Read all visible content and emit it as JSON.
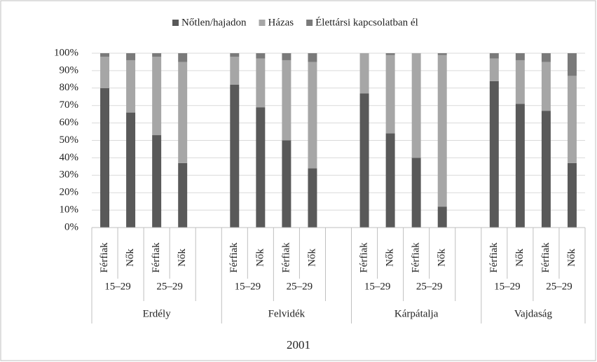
{
  "chart_data": {
    "type": "stacked_bar",
    "title": "2001",
    "categories": [
      "Férfiak",
      "Nők",
      "Férfiak",
      "Nők",
      null,
      "Férfiak",
      "Nők",
      "Férfiak",
      "Nők",
      null,
      "Férfiak",
      "Nők",
      "Férfiak",
      "Nők",
      null,
      "Férfiak",
      "Nők",
      "Férfiak",
      "Nők"
    ],
    "groups": [
      {
        "name": "Erdély",
        "subgroups": [
          "15–29",
          "25–29"
        ]
      },
      {
        "name": "Felvidék",
        "subgroups": [
          "15–29",
          "25–29"
        ]
      },
      {
        "name": "Kárpátalja",
        "subgroups": [
          "15–29",
          "25–29"
        ]
      },
      {
        "name": "Vajdaság",
        "subgroups": [
          "15–29",
          "25–29"
        ]
      }
    ],
    "series": [
      {
        "name": "Nőtlen/hajadon",
        "color": "#595959",
        "values": [
          80,
          66,
          53,
          37,
          null,
          82,
          69,
          50,
          34,
          null,
          77,
          54,
          40,
          12,
          null,
          84,
          71,
          67,
          37
        ]
      },
      {
        "name": "Házas",
        "color": "#a6a6a6",
        "values": [
          18,
          30,
          45,
          58,
          null,
          16,
          28,
          46,
          61,
          null,
          23,
          45,
          60,
          87,
          null,
          13,
          25,
          28,
          50
        ]
      },
      {
        "name": "Élettársi kapcsolatban él",
        "color": "#7a7a7a",
        "values": [
          2,
          4,
          2,
          5,
          null,
          2,
          3,
          4,
          5,
          null,
          0,
          1,
          0,
          1,
          null,
          3,
          4,
          5,
          13
        ]
      }
    ],
    "ylim": [
      0,
      100
    ],
    "yticks": [
      {
        "value": 0,
        "label": "0%"
      },
      {
        "value": 10,
        "label": "10%"
      },
      {
        "value": 20,
        "label": "20%"
      },
      {
        "value": 30,
        "label": "30%"
      },
      {
        "value": 40,
        "label": "40%"
      },
      {
        "value": 50,
        "label": "50%"
      },
      {
        "value": 60,
        "label": "60%"
      },
      {
        "value": 70,
        "label": "70%"
      },
      {
        "value": 80,
        "label": "80%"
      },
      {
        "value": 90,
        "label": "90%"
      },
      {
        "value": 100,
        "label": "100%"
      }
    ],
    "grid": true,
    "legend": "top"
  }
}
